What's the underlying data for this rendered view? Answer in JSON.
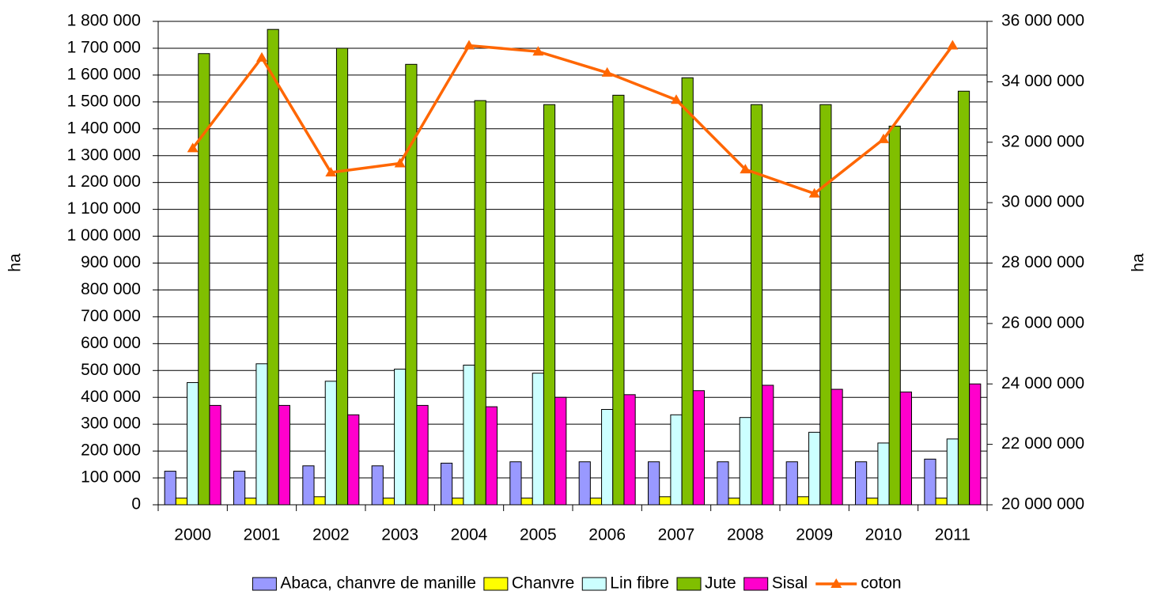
{
  "chart_data": {
    "type": "bar",
    "ylabel": "ha",
    "y2label": "ha",
    "categories": [
      "2000",
      "2001",
      "2002",
      "2003",
      "2004",
      "2005",
      "2006",
      "2007",
      "2008",
      "2009",
      "2010",
      "2011"
    ],
    "series": [
      {
        "name": "Abaca, chanvre de manille",
        "color": "#9999ff",
        "values": [
          125000,
          125000,
          145000,
          145000,
          155000,
          160000,
          160000,
          160000,
          160000,
          160000,
          160000,
          170000
        ]
      },
      {
        "name": "Chanvre",
        "color": "#ffff00",
        "values": [
          25000,
          25000,
          30000,
          25000,
          25000,
          25000,
          25000,
          30000,
          25000,
          30000,
          25000,
          25000
        ]
      },
      {
        "name": "Lin fibre",
        "color": "#ccffff",
        "values": [
          455000,
          525000,
          460000,
          505000,
          520000,
          490000,
          355000,
          335000,
          325000,
          270000,
          230000,
          245000
        ]
      },
      {
        "name": "Jute",
        "color": "#80bf00",
        "values": [
          1680000,
          1770000,
          1700000,
          1640000,
          1505000,
          1490000,
          1525000,
          1590000,
          1490000,
          1490000,
          1410000,
          1540000
        ]
      },
      {
        "name": "Sisal",
        "color": "#ff00cc",
        "values": [
          370000,
          370000,
          335000,
          370000,
          365000,
          400000,
          410000,
          425000,
          445000,
          430000,
          420000,
          450000
        ]
      },
      {
        "name": "coton",
        "color": "#ff6600",
        "type": "line",
        "axis": "y2",
        "values": [
          31800000,
          34800000,
          31000000,
          31300000,
          35200000,
          35000000,
          34300000,
          33400000,
          31100000,
          30300000,
          32100000,
          35200000
        ]
      }
    ],
    "ylim": [
      0,
      1800000
    ],
    "yticks": [
      0,
      {
        "value": 100000,
        "label": "100 000"
      },
      {
        "value": 200000,
        "label": "200 000"
      },
      {
        "value": 300000,
        "label": "300 000"
      },
      {
        "value": 400000,
        "label": "400 000"
      },
      {
        "value": 500000,
        "label": "500 000"
      },
      {
        "value": 600000,
        "label": "600 000"
      },
      {
        "value": 700000,
        "label": "700 000"
      },
      {
        "value": 800000,
        "label": "800 000"
      },
      {
        "value": 900000,
        "label": "900 000"
      },
      {
        "value": 1000000,
        "label": "1 000 000"
      },
      {
        "value": 1100000,
        "label": "1 100 000"
      },
      {
        "value": 1200000,
        "label": "1 200 000"
      },
      {
        "value": 1300000,
        "label": "1 300 000"
      },
      {
        "value": 1400000,
        "label": "1 400 000"
      },
      {
        "value": 1500000,
        "label": "1 500 000"
      },
      {
        "value": 1600000,
        "label": "1 600 000"
      },
      {
        "value": 1700000,
        "label": "1 700 000"
      },
      {
        "value": 1800000,
        "label": "1 800 000"
      }
    ],
    "y2lim": [
      20000000,
      36000000
    ],
    "y2ticks": [
      {
        "value": 20000000,
        "label": "20 000 000"
      },
      {
        "value": 22000000,
        "label": "22 000 000"
      },
      {
        "value": 24000000,
        "label": "24 000 000"
      },
      {
        "value": 26000000,
        "label": "26 000 000"
      },
      {
        "value": 28000000,
        "label": "28 000 000"
      },
      {
        "value": 30000000,
        "label": "30 000 000"
      },
      {
        "value": 32000000,
        "label": "32 000 000"
      },
      {
        "value": 34000000,
        "label": "34 000 000"
      },
      {
        "value": 36000000,
        "label": "36 000 000"
      }
    ],
    "grid": true,
    "legend": "bottom"
  }
}
